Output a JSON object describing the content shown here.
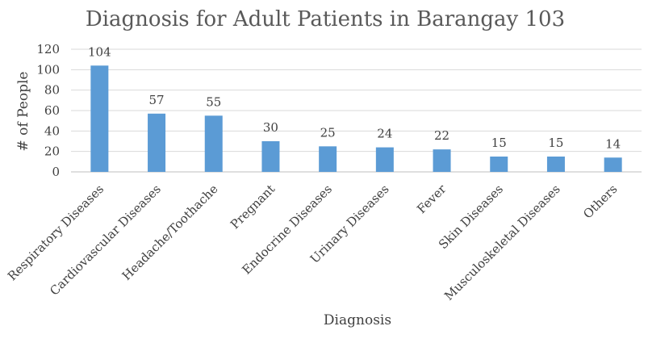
{
  "chart_data": {
    "type": "bar",
    "title": "Diagnosis for Adult Patients in Barangay 103",
    "xlabel": "Diagnosis",
    "ylabel": "# of People",
    "ylim": [
      0,
      120
    ],
    "yticks": [
      0,
      20,
      40,
      60,
      80,
      100,
      120
    ],
    "grid": true,
    "categories": [
      "Respiratory Diseases",
      "Cardiovascular Diseases",
      "Headache/Toothache",
      "Pregnant",
      "Endocrine Diseases",
      "Urinary Diseases",
      "Fever",
      "Skin Diseases",
      "Musculoskeletal Diseases",
      "Others"
    ],
    "values": [
      104,
      57,
      55,
      30,
      25,
      24,
      22,
      15,
      15,
      14
    ],
    "bar_color": "#5B9BD5"
  }
}
